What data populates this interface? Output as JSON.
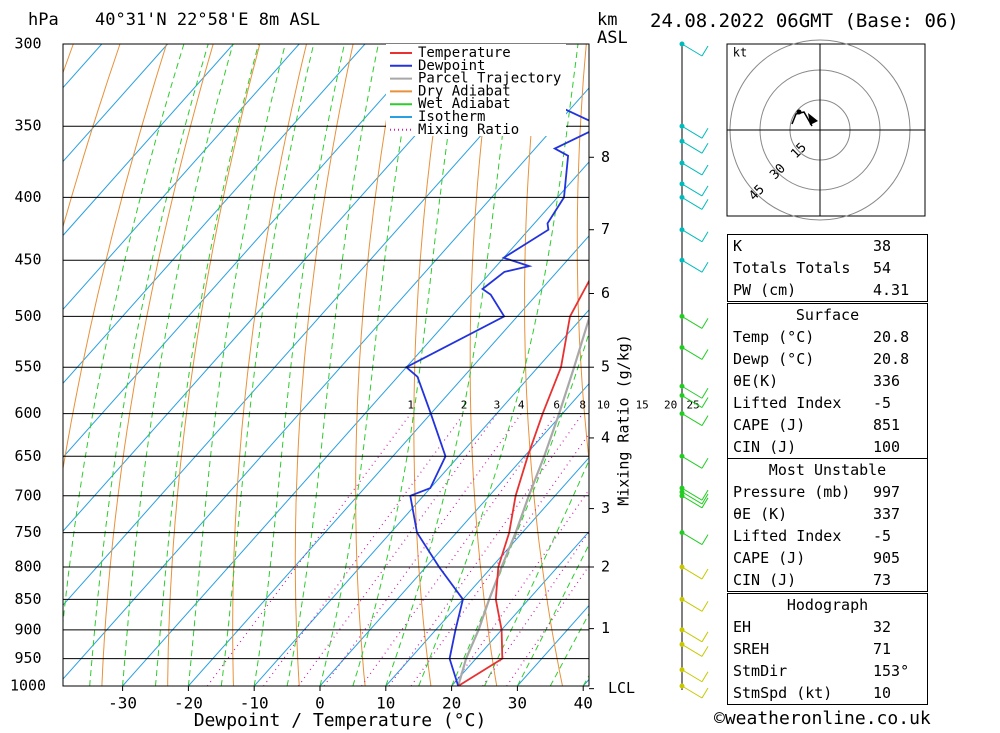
{
  "header": {
    "location": "40°31'N 22°58'E 8m ASL",
    "unit_hpa": "hPa",
    "unit_km": "km",
    "unit_asl": "ASL",
    "datetime": "24.08.2022 06GMT (Base: 06)"
  },
  "chart_data": {
    "type": "skew-t",
    "xlabel": "Dewpoint / Temperature (°C)",
    "ylabel_right": "Mixing Ratio (g/kg)",
    "xlim": [
      -40,
      40
    ],
    "ylim_hpa": [
      1000,
      300
    ],
    "x_ticks": [
      -30,
      -20,
      -10,
      0,
      10,
      20,
      30,
      40
    ],
    "pressure_levels": [
      300,
      350,
      400,
      450,
      500,
      550,
      600,
      650,
      700,
      750,
      800,
      850,
      900,
      950,
      1000
    ],
    "km_ticks": [
      {
        "label": "8",
        "p": 371
      },
      {
        "label": "7",
        "p": 425
      },
      {
        "label": "6",
        "p": 479
      },
      {
        "label": "5",
        "p": 550
      },
      {
        "label": "4",
        "p": 628
      },
      {
        "label": "3",
        "p": 717
      },
      {
        "label": "2",
        "p": 800
      },
      {
        "label": "1",
        "p": 898
      },
      {
        "label": "LCL",
        "p": 1005
      }
    ],
    "mixing_ratio_labels": [
      "1",
      "2",
      "3",
      "4",
      "6",
      "8",
      "10",
      "15",
      "20",
      "25"
    ],
    "mixing_ratio_values": [
      1,
      2,
      3,
      4,
      6,
      8,
      10,
      15,
      20,
      25
    ],
    "legend": [
      "Temperature",
      "Dewpoint",
      "Parcel Trajectory",
      "Dry Adiabat",
      "Wet Adiabat",
      "Isotherm",
      "Mixing Ratio"
    ],
    "legend_position": "top-right",
    "colors": {
      "temperature": "#e83232",
      "dewpoint": "#2233dd",
      "parcel": "#a8a8a8",
      "dry_adiabat": "#e8913a",
      "wet_adiabat": "#2ecc2e",
      "isotherm": "#2aa0e0",
      "mixing_ratio": "#cc22aa"
    },
    "temperature": [
      {
        "p": 1000,
        "t": 21
      },
      {
        "p": 950,
        "t": 24
      },
      {
        "p": 900,
        "t": 20
      },
      {
        "p": 850,
        "t": 15
      },
      {
        "p": 800,
        "t": 11
      },
      {
        "p": 750,
        "t": 8
      },
      {
        "p": 700,
        "t": 4
      },
      {
        "p": 650,
        "t": 0.5
      },
      {
        "p": 600,
        "t": -3
      },
      {
        "p": 550,
        "t": -6.5
      },
      {
        "p": 500,
        "t": -12
      },
      {
        "p": 450,
        "t": -15
      },
      {
        "p": 430,
        "t": -16
      },
      {
        "p": 420,
        "t": -17.5
      },
      {
        "p": 400,
        "t": -20
      },
      {
        "p": 370,
        "t": -25
      },
      {
        "p": 360,
        "t": -25
      },
      {
        "p": 350,
        "t": -29
      },
      {
        "p": 300,
        "t": -40
      }
    ],
    "dewpoint": [
      {
        "p": 1000,
        "t": 21
      },
      {
        "p": 950,
        "t": 16
      },
      {
        "p": 900,
        "t": 13
      },
      {
        "p": 850,
        "t": 10
      },
      {
        "p": 800,
        "t": 2
      },
      {
        "p": 750,
        "t": -6
      },
      {
        "p": 700,
        "t": -12
      },
      {
        "p": 690,
        "t": -10
      },
      {
        "p": 650,
        "t": -12
      },
      {
        "p": 600,
        "t": -20
      },
      {
        "p": 560,
        "t": -27
      },
      {
        "p": 550,
        "t": -30
      },
      {
        "p": 500,
        "t": -22
      },
      {
        "p": 480,
        "t": -27
      },
      {
        "p": 475,
        "t": -29
      },
      {
        "p": 460,
        "t": -28
      },
      {
        "p": 455,
        "t": -25
      },
      {
        "p": 448,
        "t": -30
      },
      {
        "p": 425,
        "t": -27
      },
      {
        "p": 420,
        "t": -28
      },
      {
        "p": 400,
        "t": -29
      },
      {
        "p": 370,
        "t": -34
      },
      {
        "p": 365,
        "t": -37
      },
      {
        "p": 350,
        "t": -33
      },
      {
        "p": 320,
        "t": -55
      },
      {
        "p": 300,
        "t": -50
      }
    ],
    "parcel": [
      {
        "p": 1000,
        "t": 21
      },
      {
        "p": 950,
        "t": 18.5
      },
      {
        "p": 900,
        "t": 16.5
      },
      {
        "p": 850,
        "t": 14
      },
      {
        "p": 800,
        "t": 11.5
      },
      {
        "p": 750,
        "t": 9
      },
      {
        "p": 700,
        "t": 6
      },
      {
        "p": 650,
        "t": 3
      },
      {
        "p": 600,
        "t": -0.5
      },
      {
        "p": 550,
        "t": -4.5
      },
      {
        "p": 500,
        "t": -9
      },
      {
        "p": 450,
        "t": -14
      },
      {
        "p": 400,
        "t": -20
      },
      {
        "p": 350,
        "t": -27.5
      },
      {
        "p": 300,
        "t": -37
      }
    ],
    "wind_levels_hpa": [
      1000,
      970,
      925,
      900,
      850,
      800,
      750,
      700,
      695,
      690,
      650,
      600,
      580,
      570,
      530,
      500,
      450,
      425,
      400,
      390,
      375,
      360,
      350,
      300
    ],
    "hodograph": {
      "ring_labels": [
        "15",
        "30",
        "45"
      ],
      "unit": "kt"
    }
  },
  "stats": {
    "general": [
      {
        "key": "K",
        "value": "38"
      },
      {
        "key": "Totals Totals",
        "value": "54"
      },
      {
        "key": "PW (cm)",
        "value": "4.31"
      }
    ],
    "surface_title": "Surface",
    "surface": [
      {
        "key": "Temp (°C)",
        "value": "20.8"
      },
      {
        "key": "Dewp (°C)",
        "value": "20.8"
      },
      {
        "key": "θE(K)",
        "value": "336"
      },
      {
        "key": "Lifted Index",
        "value": "-5"
      },
      {
        "key": "CAPE (J)",
        "value": "851"
      },
      {
        "key": "CIN (J)",
        "value": "100"
      }
    ],
    "mu_title": "Most Unstable",
    "mu": [
      {
        "key": "Pressure (mb)",
        "value": "997"
      },
      {
        "key": "θE (K)",
        "value": "337"
      },
      {
        "key": "Lifted Index",
        "value": "-5"
      },
      {
        "key": "CAPE (J)",
        "value": "905"
      },
      {
        "key": "CIN (J)",
        "value": "73"
      }
    ],
    "hodo_title": "Hodograph",
    "hodo": [
      {
        "key": "EH",
        "value": "32"
      },
      {
        "key": "SREH",
        "value": "71"
      },
      {
        "key": "StmDir",
        "value": "153°"
      },
      {
        "key": "StmSpd (kt)",
        "value": "10"
      }
    ]
  },
  "footer": "©weatheronline.co.uk"
}
